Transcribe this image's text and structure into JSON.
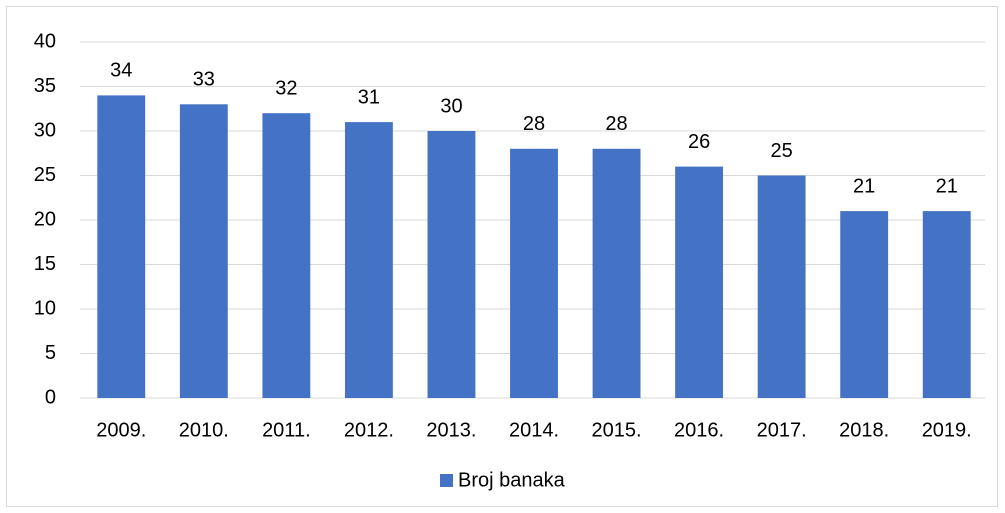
{
  "chart_data": {
    "type": "bar",
    "categories": [
      "2009.",
      "2010.",
      "2011.",
      "2012.",
      "2013.",
      "2014.",
      "2015.",
      "2016.",
      "2017.",
      "2018.",
      "2019."
    ],
    "series": [
      {
        "name": "Broj banaka",
        "color": "#4472c4",
        "values": [
          34,
          33,
          32,
          31,
          30,
          28,
          28,
          26,
          25,
          21,
          21
        ]
      }
    ],
    "ylim": [
      0,
      40
    ],
    "yticks": [
      0,
      5,
      10,
      15,
      20,
      25,
      30,
      35,
      40
    ],
    "grid": true,
    "legend": "bottom"
  }
}
